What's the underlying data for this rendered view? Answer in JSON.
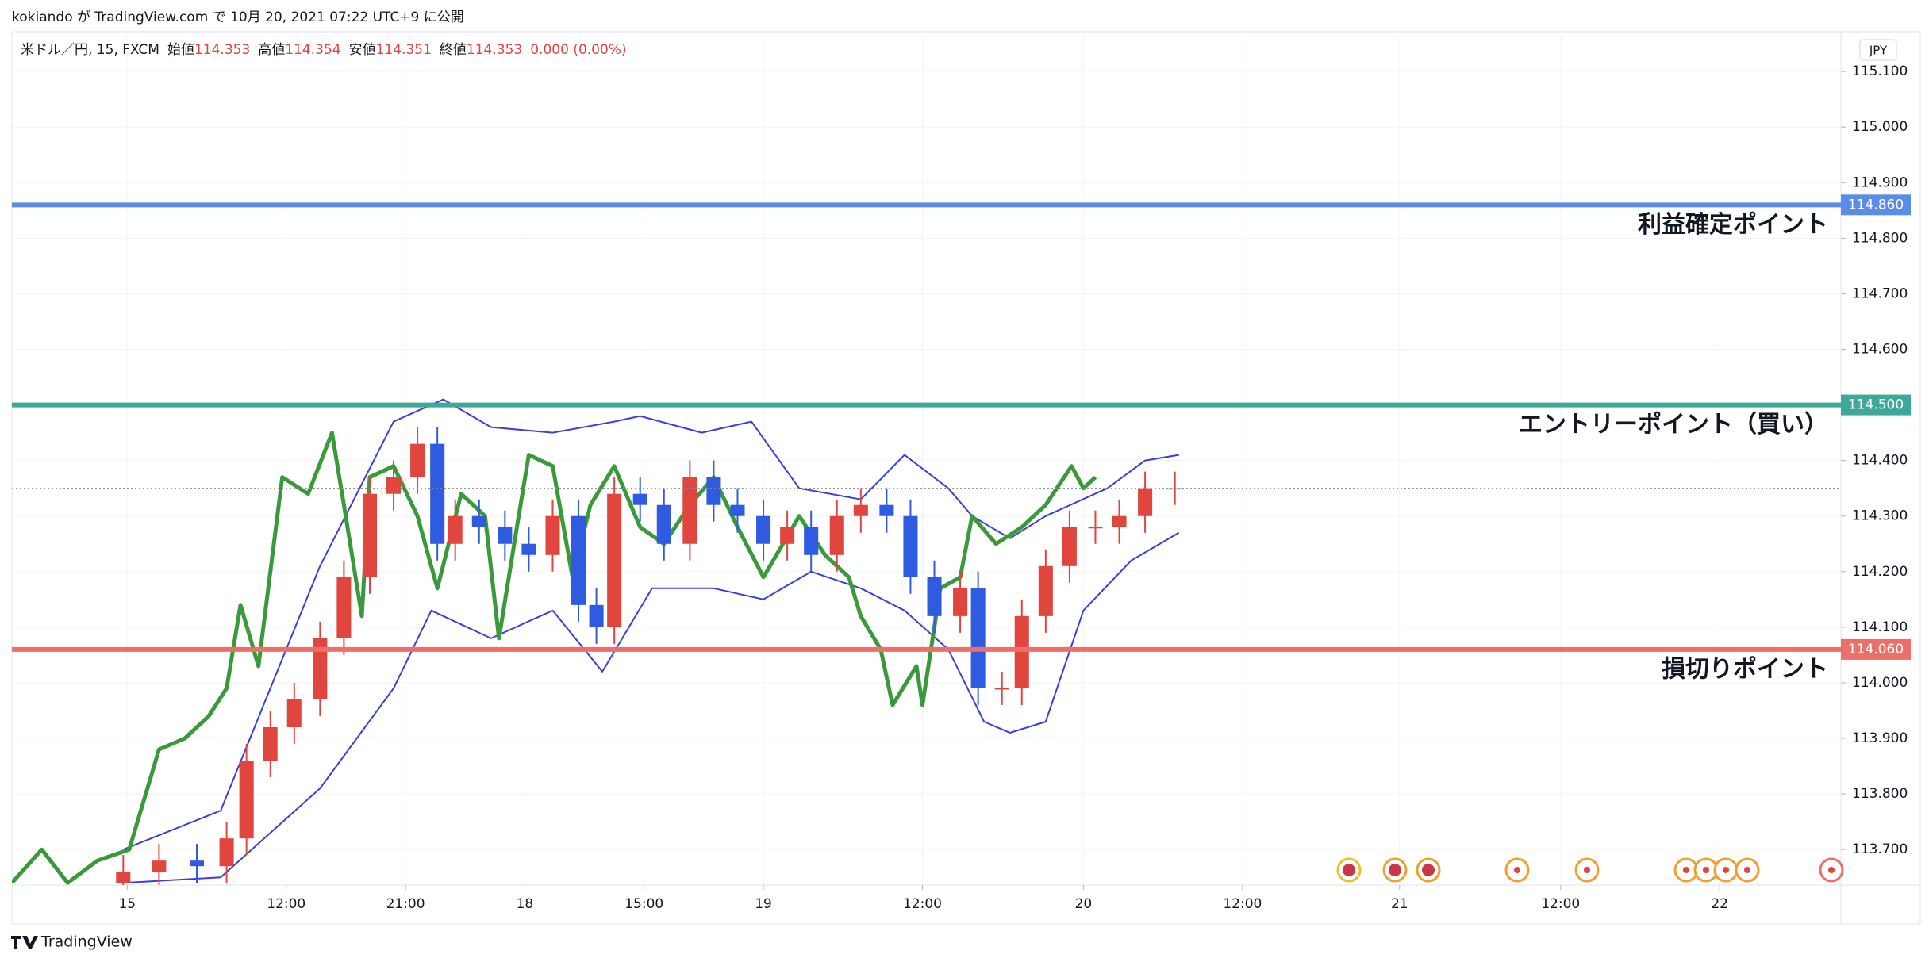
{
  "header": {
    "text": "kokiando が TradingView.com で 10月 20, 2021 07:22 UTC+9 に公開"
  },
  "footer": {
    "brand": "TradingView"
  },
  "chart_data": {
    "type": "candlestick",
    "symbol": "米ドル／円, 15, FXCM",
    "ohlc_legend": [
      {
        "label": "始値",
        "value": "114.353"
      },
      {
        "label": "高値",
        "value": "114.354"
      },
      {
        "label": "安値",
        "value": "114.351"
      },
      {
        "label": "終値",
        "value": "114.353"
      }
    ],
    "change": "0.000 (0.00%)",
    "currency": "JPY",
    "up_color": "#e0453e",
    "down_color": "#2f5be0",
    "x": [
      56,
      74,
      93,
      108,
      118,
      130,
      142,
      155,
      167,
      180,
      192,
      204,
      214,
      223,
      235,
      248,
      260,
      272,
      285,
      294,
      303,
      316,
      328,
      341,
      353,
      365,
      378,
      390,
      402,
      415,
      427,
      440,
      452,
      464,
      477,
      486,
      498,
      508,
      520,
      532,
      545,
      557,
      570,
      585
    ],
    "open": [
      113.64,
      113.66,
      113.68,
      113.67,
      113.72,
      113.86,
      113.92,
      113.97,
      114.08,
      114.19,
      114.34,
      114.37,
      114.43,
      114.25,
      114.3,
      114.28,
      114.25,
      114.23,
      114.3,
      114.14,
      114.1,
      114.34,
      114.32,
      114.25,
      114.37,
      114.32,
      114.3,
      114.25,
      114.28,
      114.23,
      114.3,
      114.32,
      114.3,
      114.19,
      114.12,
      114.17,
      113.99,
      113.99,
      114.12,
      114.21,
      114.28,
      114.28,
      114.3,
      114.35
    ],
    "high": [
      113.69,
      113.71,
      113.71,
      113.75,
      113.89,
      113.95,
      114.0,
      114.11,
      114.22,
      114.37,
      114.4,
      114.46,
      114.46,
      114.33,
      114.33,
      114.31,
      114.28,
      114.33,
      114.33,
      114.17,
      114.37,
      114.37,
      114.35,
      114.4,
      114.4,
      114.35,
      114.33,
      114.31,
      114.31,
      114.33,
      114.35,
      114.35,
      114.33,
      114.22,
      114.2,
      114.2,
      114.02,
      114.15,
      114.24,
      114.31,
      114.31,
      114.33,
      114.38,
      114.38
    ],
    "low": [
      113.61,
      113.63,
      113.64,
      113.64,
      113.69,
      113.83,
      113.89,
      113.94,
      114.05,
      114.16,
      114.31,
      114.34,
      114.22,
      114.22,
      114.25,
      114.22,
      114.2,
      114.2,
      114.11,
      114.07,
      114.07,
      114.29,
      114.22,
      114.22,
      114.29,
      114.27,
      114.22,
      114.22,
      114.2,
      114.2,
      114.27,
      114.27,
      114.16,
      114.09,
      114.09,
      113.96,
      113.96,
      113.96,
      114.09,
      114.18,
      114.25,
      114.25,
      114.27,
      114.32
    ],
    "close": [
      113.66,
      113.68,
      113.67,
      113.72,
      113.86,
      113.92,
      113.97,
      114.08,
      114.19,
      114.34,
      114.37,
      114.43,
      114.25,
      114.3,
      114.28,
      114.25,
      114.23,
      114.3,
      114.14,
      114.1,
      114.34,
      114.32,
      114.25,
      114.37,
      114.32,
      114.3,
      114.25,
      114.28,
      114.23,
      114.3,
      114.32,
      114.3,
      114.19,
      114.12,
      114.17,
      113.99,
      113.99,
      114.12,
      114.21,
      114.28,
      114.28,
      114.3,
      114.35,
      114.35
    ],
    "lines": [
      {
        "color": "#3a3fd6",
        "x": [
          56,
          105,
          155,
          192,
          217,
          241,
          272,
          303,
          316,
          347,
          372,
          396,
          427,
          449,
          471,
          483,
          502,
          520,
          551,
          570,
          587
        ],
        "values": [
          113.7,
          113.77,
          114.21,
          114.47,
          114.51,
          114.46,
          114.45,
          114.47,
          114.48,
          114.45,
          114.47,
          114.35,
          114.33,
          114.41,
          114.35,
          114.3,
          114.26,
          114.3,
          114.35,
          114.4,
          114.41
        ]
      },
      {
        "color": "#3a3fd6",
        "x": [
          56,
          105,
          155,
          192,
          211,
          241,
          272,
          297,
          322,
          353,
          378,
          402,
          427,
          449,
          471,
          489,
          502,
          520,
          539,
          563,
          587
        ],
        "values": [
          113.64,
          113.65,
          113.81,
          113.99,
          114.13,
          114.08,
          114.13,
          114.02,
          114.17,
          114.17,
          114.15,
          114.2,
          114.17,
          114.13,
          114.06,
          113.93,
          113.91,
          113.93,
          114.13,
          114.22,
          114.27
        ]
      },
      {
        "color": "#3a9a3a",
        "x": [
          0,
          15,
          28,
          43,
          59,
          74,
          87,
          99,
          108,
          115,
          124,
          136,
          149,
          161,
          167,
          176,
          180,
          192,
          204,
          214,
          226,
          238,
          245,
          254,
          260,
          272,
          282,
          291,
          303,
          316,
          328,
          341,
          353,
          365,
          378,
          396,
          409,
          421,
          427,
          437,
          443,
          455,
          458,
          467,
          477,
          483,
          495,
          508,
          520,
          533,
          539,
          545
        ],
        "values": [
          113.64,
          113.7,
          113.64,
          113.68,
          113.7,
          113.88,
          113.9,
          113.94,
          113.99,
          114.14,
          114.03,
          114.37,
          114.34,
          114.45,
          114.32,
          114.12,
          114.37,
          114.39,
          114.3,
          114.17,
          114.34,
          114.3,
          114.08,
          114.28,
          114.41,
          114.39,
          114.19,
          114.32,
          114.39,
          114.28,
          114.25,
          114.32,
          114.37,
          114.28,
          114.19,
          114.3,
          114.23,
          114.19,
          114.12,
          114.06,
          113.96,
          114.03,
          113.96,
          114.17,
          114.19,
          114.3,
          114.25,
          114.28,
          114.32,
          114.39,
          114.35,
          114.37
        ]
      }
    ],
    "levels": [
      {
        "value": 114.86,
        "label": "114.860",
        "text": "利益確定ポイント",
        "color": "#5a8ee6"
      },
      {
        "value": 114.5,
        "label": "114.500",
        "text": "エントリーポイント（買い）",
        "color": "#3fa89a"
      },
      {
        "value": 114.06,
        "label": "114.060",
        "text": "損切りポイント",
        "color": "#ec7069"
      }
    ],
    "xlim": [
      0,
      920
    ],
    "xticks": [
      {
        "value": 58,
        "label": "15"
      },
      {
        "value": 138,
        "label": "12:00"
      },
      {
        "value": 198,
        "label": "21:00"
      },
      {
        "value": 258,
        "label": "18"
      },
      {
        "value": 318,
        "label": "15:00"
      },
      {
        "value": 378,
        "label": "19"
      },
      {
        "value": 458,
        "label": "12:00"
      },
      {
        "value": 539,
        "label": "20"
      },
      {
        "value": 619,
        "label": "12:00"
      },
      {
        "value": 698,
        "label": "21"
      },
      {
        "value": 779,
        "label": "12:00"
      },
      {
        "value": 859,
        "label": "22"
      }
    ],
    "ylim": [
      113.636,
      115.163
    ],
    "yticks": [
      {
        "value": 113.7,
        "label": "113.700"
      },
      {
        "value": 113.8,
        "label": "113.800"
      },
      {
        "value": 113.9,
        "label": "113.900"
      },
      {
        "value": 114,
        "label": "114.000"
      },
      {
        "value": 114.1,
        "label": "114.100"
      },
      {
        "value": 114.2,
        "label": "114.200"
      },
      {
        "value": 114.3,
        "label": "114.300"
      },
      {
        "value": 114.4,
        "label": "114.400"
      },
      {
        "value": 114.5,
        "label": "114.500"
      },
      {
        "value": 114.6,
        "label": "114.600"
      },
      {
        "value": 114.7,
        "label": "114.700"
      },
      {
        "value": 114.8,
        "label": "114.800"
      },
      {
        "value": 114.9,
        "label": "114.900"
      },
      {
        "value": 115,
        "label": "115.000"
      },
      {
        "value": 115.1,
        "label": "115.100"
      }
    ],
    "grid": true
  }
}
